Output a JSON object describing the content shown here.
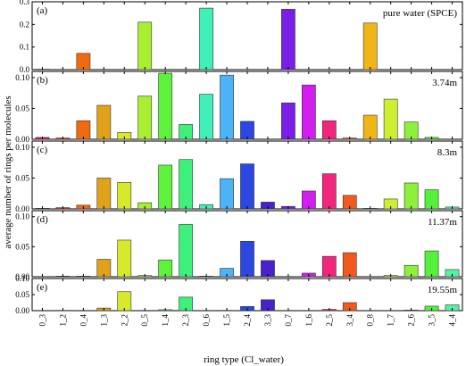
{
  "chart_data": {
    "type": "bar",
    "xlabel": "ring type (Cl_water)",
    "ylabel": "average number of rings per molecules",
    "categories": [
      "0_3",
      "1_2",
      "0_4",
      "1_3",
      "2_2",
      "0_5",
      "1_4",
      "2_3",
      "0_6",
      "1_5",
      "2_4",
      "3_3",
      "0_7",
      "1_6",
      "2_5",
      "3_4",
      "0_8",
      "1_7",
      "2_6",
      "3_5",
      "4_4"
    ],
    "colors": [
      "#e4147e",
      "#e6311d",
      "#f06a10",
      "#dfa31b",
      "#d7ea2a",
      "#a7ef30",
      "#5df33a",
      "#3df17a",
      "#3ff0b8",
      "#4cb3f7",
      "#2d48e0",
      "#4a22cc",
      "#7a1ee8",
      "#d21ff0",
      "#f2257c",
      "#f05a1c",
      "#f0b516",
      "#cdef31",
      "#8df03a",
      "#55f03a",
      "#54f2a0"
    ],
    "panels": [
      {
        "tag": "(a)",
        "label": "pure water (SPCE)",
        "ylim": [
          0,
          0.3
        ],
        "yticks": [
          "0.0",
          "0.1",
          "0.2",
          "0.3"
        ],
        "yticks_values": [
          0,
          0.1,
          0.2,
          0.3
        ],
        "values": [
          0.002,
          0,
          0.072,
          0,
          0,
          0.21,
          0,
          0,
          0.272,
          0,
          0,
          0,
          0.267,
          0,
          0,
          0,
          0.206,
          0,
          0,
          0,
          0
        ]
      },
      {
        "tag": "(b)",
        "label": "3.74m",
        "ylim": [
          0,
          0.11
        ],
        "yticks": [
          "0.00",
          "0.05",
          "0.10"
        ],
        "yticks_values": [
          0,
          0.05,
          0.1
        ],
        "values": [
          0.003,
          0.002,
          0.03,
          0.055,
          0.011,
          0.07,
          0.107,
          0.024,
          0.073,
          0.104,
          0.029,
          0,
          0.059,
          0.088,
          0.03,
          0.002,
          0.039,
          0.065,
          0.028,
          0.003,
          0
        ]
      },
      {
        "tag": "(c)",
        "label": "8.3m",
        "ylim": [
          0,
          0.11
        ],
        "yticks": [
          "0.00",
          "0.05",
          "0.10"
        ],
        "yticks_values": [
          0,
          0.05,
          0.1
        ],
        "values": [
          0.001,
          0.002,
          0.006,
          0.05,
          0.043,
          0.01,
          0.071,
          0.08,
          0.007,
          0.049,
          0.073,
          0.011,
          0.004,
          0.029,
          0.057,
          0.022,
          0.001,
          0.016,
          0.042,
          0.031,
          0.003
        ]
      },
      {
        "tag": "(d)",
        "label": "11.37m",
        "ylim": [
          0,
          0.11
        ],
        "yticks": [
          "0.00",
          "0.05",
          "0.10"
        ],
        "yticks_values": [
          0,
          0.05,
          0.1
        ],
        "values": [
          0,
          0.001,
          0.001,
          0.029,
          0.061,
          0.002,
          0.028,
          0.087,
          0.001,
          0.014,
          0.059,
          0.027,
          0,
          0.006,
          0.034,
          0.04,
          0,
          0.002,
          0.019,
          0.043,
          0.012
        ]
      },
      {
        "tag": "(e)",
        "label": "19.55m",
        "ylim": [
          0,
          0.1
        ],
        "yticks": [
          "0.00",
          "0.05",
          "0.10"
        ],
        "yticks_values": [
          0,
          0.05,
          0.1
        ],
        "values": [
          0,
          0.001,
          0,
          0.008,
          0.059,
          0,
          0.003,
          0.042,
          0,
          0.001,
          0.013,
          0.034,
          0,
          0,
          0.004,
          0.025,
          0,
          0,
          0.002,
          0.014,
          0.018
        ]
      }
    ]
  }
}
